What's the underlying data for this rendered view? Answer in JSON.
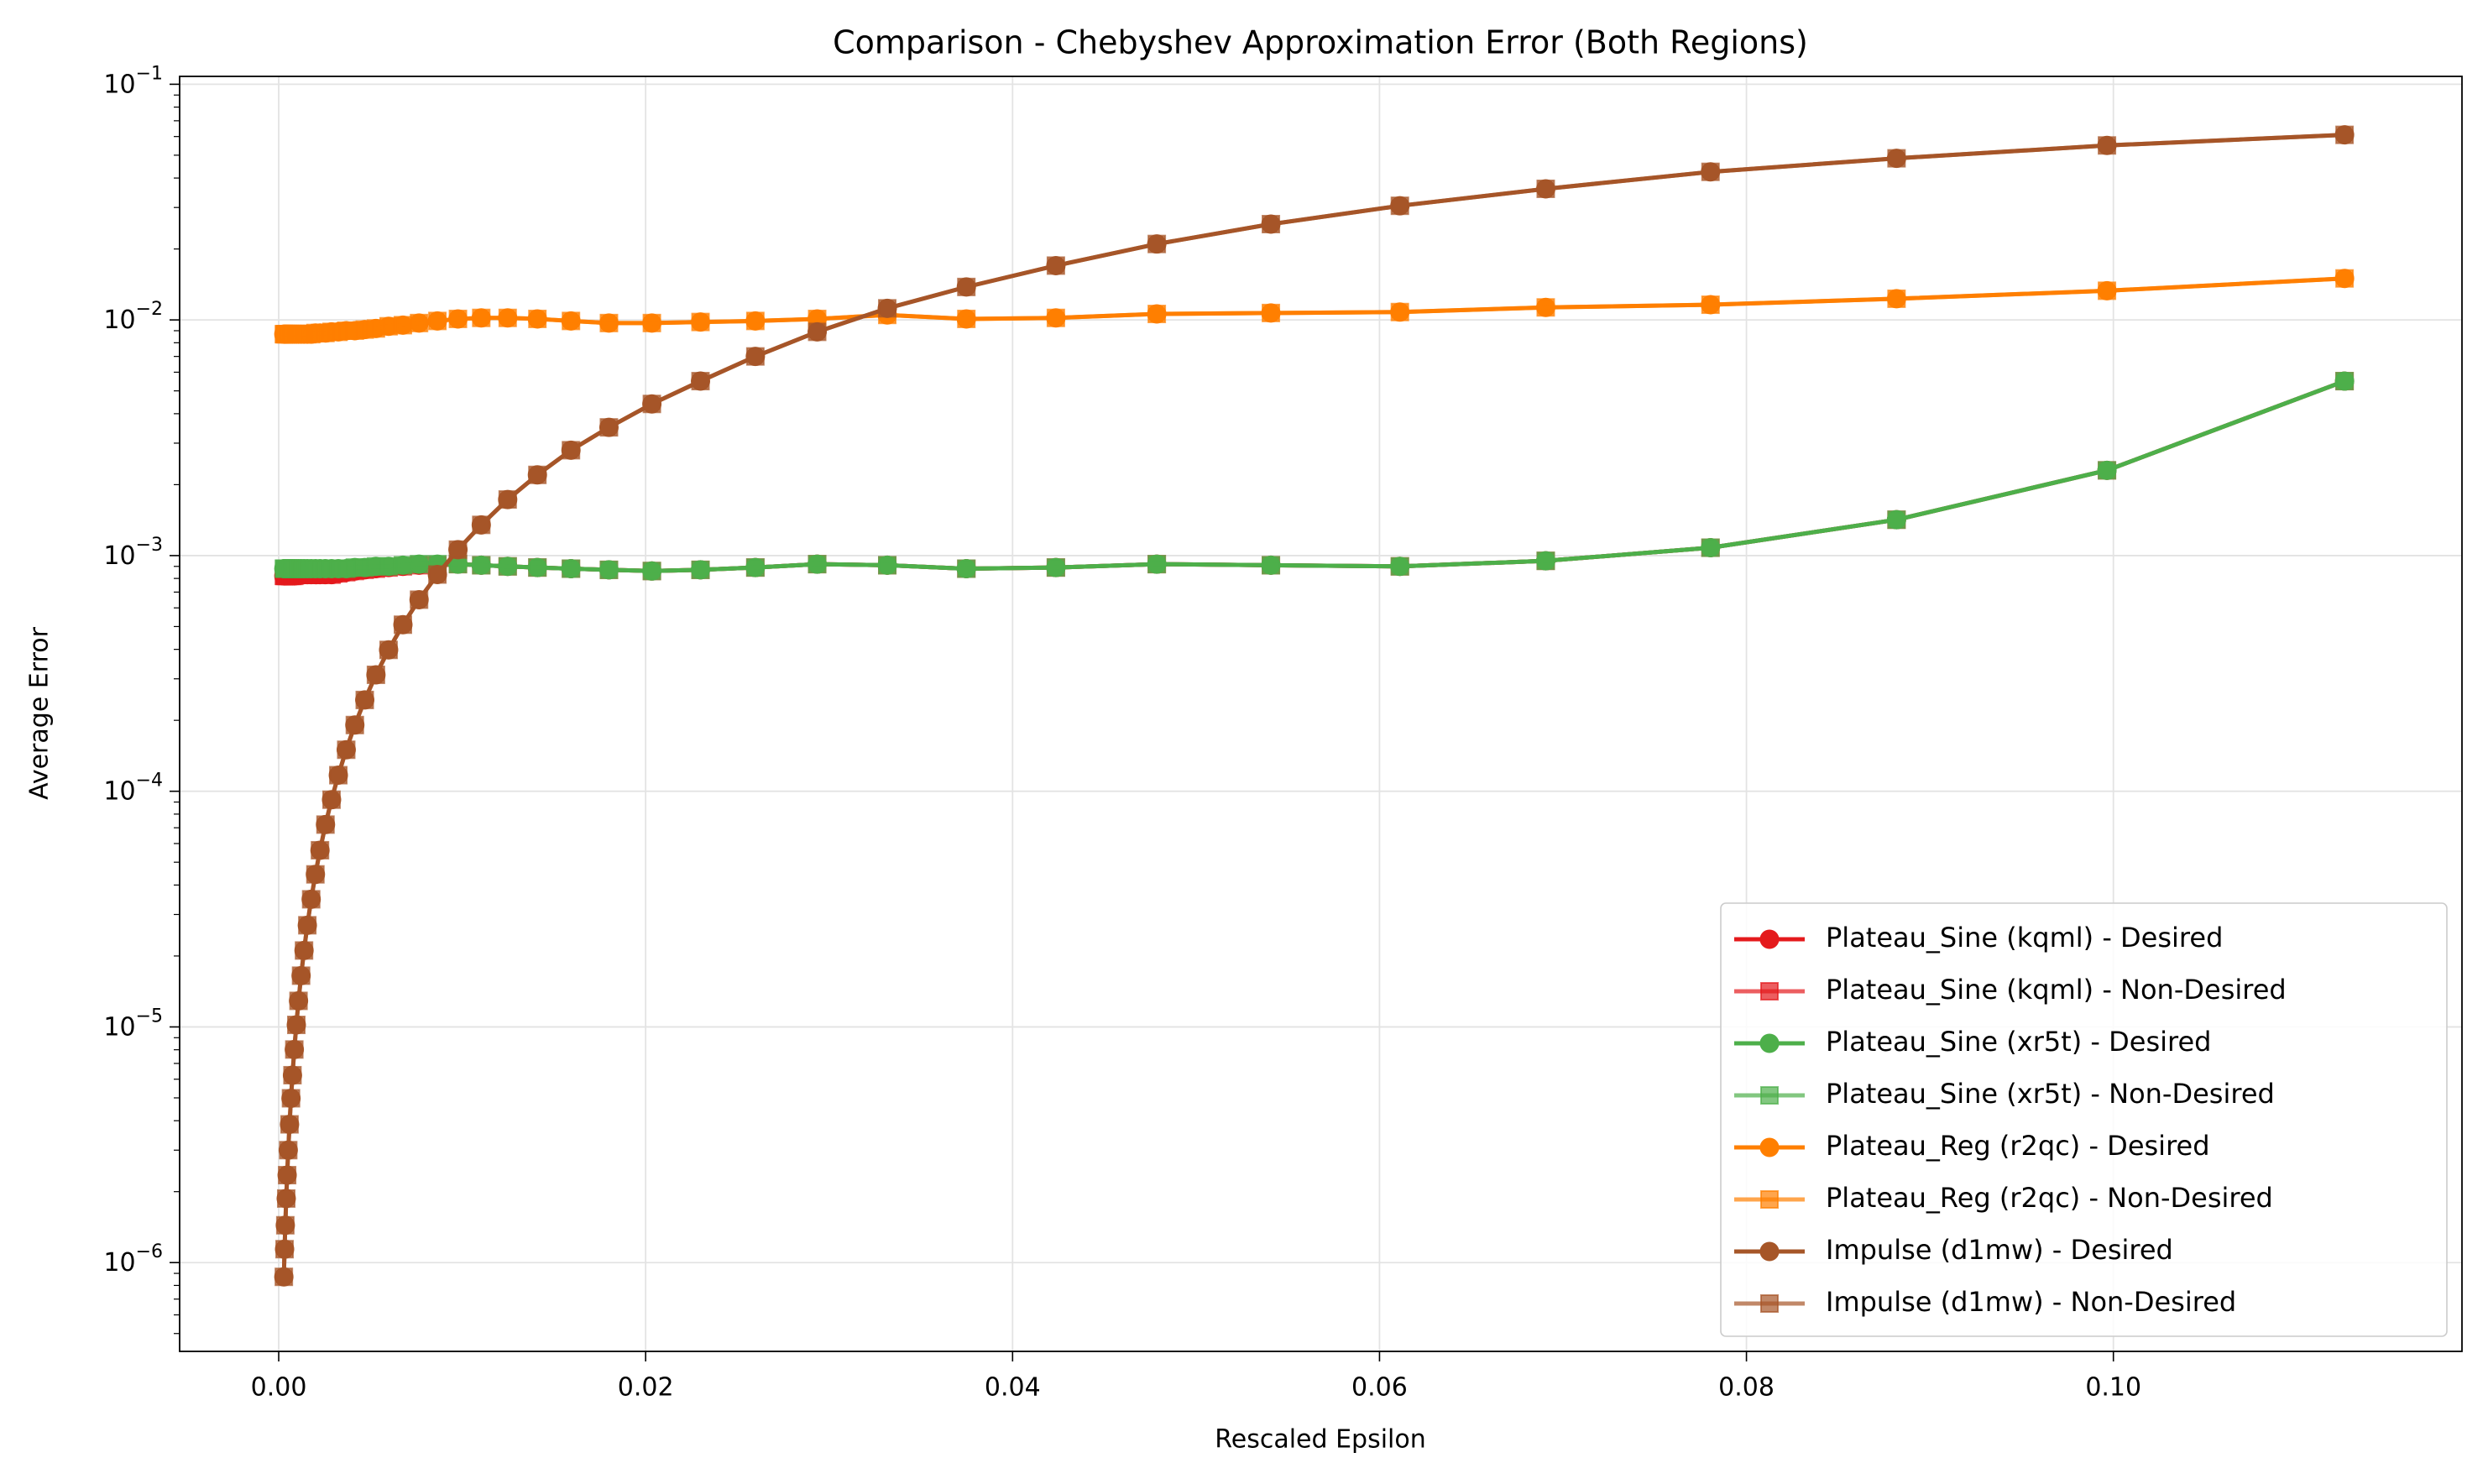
{
  "chart_data": {
    "type": "line",
    "title": "Comparison - Chebyshev Approximation Error (Both Regions)",
    "xlabel": "Rescaled Epsilon",
    "ylabel": "Average Error",
    "yscale": "log",
    "grid": true,
    "legend_loc": "lower right",
    "xlim": [
      -0.0054,
      0.119
    ],
    "ylim": [
      4.2e-07,
      0.108
    ],
    "xticks": [
      {
        "value": 0,
        "label": "0.00"
      },
      {
        "value": 0.02,
        "label": "0.02"
      },
      {
        "value": 0.04,
        "label": "0.04"
      },
      {
        "value": 0.06,
        "label": "0.06"
      },
      {
        "value": 0.08,
        "label": "0.08"
      },
      {
        "value": 0.1,
        "label": "0.10"
      }
    ],
    "yticks": [
      {
        "value": 1e-06,
        "label": "10",
        "exponent": "−6"
      },
      {
        "value": 1e-05,
        "label": "10",
        "exponent": "−5"
      },
      {
        "value": 0.0001,
        "label": "10",
        "exponent": "−4"
      },
      {
        "value": 0.001,
        "label": "10",
        "exponent": "−3"
      },
      {
        "value": 0.01,
        "label": "10",
        "exponent": "−2"
      },
      {
        "value": 0.1,
        "label": "10",
        "exponent": "−1"
      }
    ],
    "x": [
      0.00028,
      0.00032,
      0.00036,
      0.00041,
      0.00046,
      0.00052,
      0.00059,
      0.00067,
      0.00075,
      0.00085,
      0.00096,
      0.00108,
      0.00122,
      0.00138,
      0.00156,
      0.00177,
      0.002,
      0.00225,
      0.00255,
      0.00288,
      0.00325,
      0.00368,
      0.00415,
      0.00469,
      0.0053,
      0.00599,
      0.00677,
      0.00765,
      0.00865,
      0.00977,
      0.01104,
      0.01248,
      0.0141,
      0.01593,
      0.018,
      0.02034,
      0.02299,
      0.02598,
      0.02935,
      0.03317,
      0.03748,
      0.04236,
      0.04786,
      0.05408,
      0.06111,
      0.06906,
      0.07804,
      0.08818,
      0.09965,
      0.1126
    ],
    "series": [
      {
        "name": "Plateau_Sine (kqml) - Desired",
        "color": "#e41a1c",
        "marker": "circle",
        "alpha": 1,
        "values": [
          0.00082,
          0.00082,
          0.00082,
          0.00082,
          0.00082,
          0.00082,
          0.00082,
          0.00082,
          0.00082,
          0.00082,
          0.00083,
          0.00083,
          0.00083,
          0.00083,
          0.00083,
          0.00083,
          0.00083,
          0.00083,
          0.00083,
          0.00083,
          0.00084,
          0.00085,
          0.00086,
          0.00087,
          0.00088,
          0.00089,
          0.0009,
          0.00091,
          0.00091,
          0.00092,
          0.00091,
          0.0009,
          0.00089,
          0.00088,
          0.00087,
          0.00086,
          0.00087,
          0.00089,
          0.00092,
          0.00091,
          0.00088,
          0.00089,
          0.00092,
          0.00091,
          0.0009,
          0.00095,
          0.00108,
          0.00142,
          0.0023,
          0.0055
        ]
      },
      {
        "name": "Plateau_Sine (kqml) - Non-Desired",
        "color": "#e41a1c",
        "marker": "square",
        "alpha": 0.7,
        "values": [
          0.00082,
          0.00082,
          0.00082,
          0.00082,
          0.00082,
          0.00082,
          0.00082,
          0.00082,
          0.00082,
          0.00082,
          0.00083,
          0.00083,
          0.00083,
          0.00083,
          0.00083,
          0.00083,
          0.00083,
          0.00083,
          0.00083,
          0.00083,
          0.00084,
          0.00085,
          0.00086,
          0.00087,
          0.00088,
          0.00089,
          0.0009,
          0.00091,
          0.00091,
          0.00092,
          0.00091,
          0.0009,
          0.00089,
          0.00088,
          0.00087,
          0.00086,
          0.00087,
          0.00089,
          0.00092,
          0.00091,
          0.00088,
          0.00089,
          0.00092,
          0.00091,
          0.0009,
          0.00095,
          0.00108,
          0.00142,
          0.0023,
          0.0055
        ]
      },
      {
        "name": "Plateau_Sine (xr5t) - Desired",
        "color": "#4daf4a",
        "marker": "circle",
        "alpha": 1,
        "values": [
          0.00088,
          0.00088,
          0.00088,
          0.00088,
          0.00088,
          0.00088,
          0.00088,
          0.00088,
          0.00088,
          0.00088,
          0.00088,
          0.00088,
          0.00088,
          0.00088,
          0.00088,
          0.00088,
          0.00088,
          0.00088,
          0.00088,
          0.00088,
          0.00088,
          0.00088,
          0.00089,
          0.00089,
          0.0009,
          0.0009,
          0.00091,
          0.00092,
          0.00092,
          0.00092,
          0.00091,
          0.0009,
          0.00089,
          0.00088,
          0.00087,
          0.00086,
          0.00087,
          0.00089,
          0.00092,
          0.00091,
          0.00088,
          0.00089,
          0.00092,
          0.00091,
          0.0009,
          0.00095,
          0.00108,
          0.00142,
          0.0023,
          0.0055
        ]
      },
      {
        "name": "Plateau_Sine (xr5t) - Non-Desired",
        "color": "#4daf4a",
        "marker": "square",
        "alpha": 0.7,
        "values": [
          0.00088,
          0.00088,
          0.00088,
          0.00088,
          0.00088,
          0.00088,
          0.00088,
          0.00088,
          0.00088,
          0.00088,
          0.00088,
          0.00088,
          0.00088,
          0.00088,
          0.00088,
          0.00088,
          0.00088,
          0.00088,
          0.00088,
          0.00088,
          0.00088,
          0.00088,
          0.00089,
          0.00089,
          0.0009,
          0.0009,
          0.00091,
          0.00092,
          0.00092,
          0.00092,
          0.00091,
          0.0009,
          0.00089,
          0.00088,
          0.00087,
          0.00086,
          0.00087,
          0.00089,
          0.00092,
          0.00091,
          0.00088,
          0.00089,
          0.00092,
          0.00091,
          0.0009,
          0.00095,
          0.00108,
          0.00142,
          0.0023,
          0.0055
        ]
      },
      {
        "name": "Plateau_Reg (r2qc) - Desired",
        "color": "#ff7f00",
        "marker": "circle",
        "alpha": 1,
        "values": [
          0.0087,
          0.0087,
          0.0087,
          0.0087,
          0.0087,
          0.0087,
          0.0087,
          0.0087,
          0.0087,
          0.0087,
          0.0087,
          0.0087,
          0.0087,
          0.0087,
          0.0087,
          0.0087,
          0.0088,
          0.0088,
          0.0088,
          0.0089,
          0.0089,
          0.009,
          0.009,
          0.0091,
          0.0092,
          0.0094,
          0.0095,
          0.0097,
          0.0099,
          0.0101,
          0.0102,
          0.0102,
          0.0101,
          0.0099,
          0.0097,
          0.0097,
          0.0098,
          0.0099,
          0.0101,
          0.0105,
          0.0101,
          0.0102,
          0.0106,
          0.0107,
          0.0108,
          0.0113,
          0.0116,
          0.0123,
          0.0133,
          0.015
        ]
      },
      {
        "name": "Plateau_Reg (r2qc) - Non-Desired",
        "color": "#ff7f00",
        "marker": "square",
        "alpha": 0.7,
        "values": [
          0.0087,
          0.0087,
          0.0087,
          0.0087,
          0.0087,
          0.0087,
          0.0087,
          0.0087,
          0.0087,
          0.0087,
          0.0087,
          0.0087,
          0.0087,
          0.0087,
          0.0087,
          0.0087,
          0.0088,
          0.0088,
          0.0088,
          0.0089,
          0.0089,
          0.009,
          0.009,
          0.0091,
          0.0092,
          0.0094,
          0.0095,
          0.0097,
          0.0099,
          0.0101,
          0.0102,
          0.0102,
          0.0101,
          0.0099,
          0.0097,
          0.0097,
          0.0098,
          0.0099,
          0.0101,
          0.0105,
          0.0101,
          0.0102,
          0.0106,
          0.0107,
          0.0108,
          0.0113,
          0.0116,
          0.0123,
          0.0133,
          0.015
        ]
      },
      {
        "name": "Impulse (d1mw) - Desired",
        "color": "#a65628",
        "marker": "circle",
        "alpha": 1,
        "values": [
          8.7e-07,
          1.14e-06,
          1.44e-06,
          1.87e-06,
          2.35e-06,
          3e-06,
          3.86e-06,
          4.98e-06,
          6.24e-06,
          8.02e-06,
          1.02e-05,
          1.29e-05,
          1.65e-05,
          2.11e-05,
          2.7e-05,
          3.48e-05,
          4.44e-05,
          5.62e-05,
          7.22e-05,
          9.21e-05,
          0.000117,
          0.00015,
          0.000191,
          0.000244,
          0.000312,
          0.000398,
          0.000509,
          0.00065,
          0.000831,
          0.00106,
          0.00135,
          0.00173,
          0.0022,
          0.0028,
          0.0035,
          0.0044,
          0.0055,
          0.007,
          0.0089,
          0.0112,
          0.0138,
          0.017,
          0.021,
          0.0255,
          0.0305,
          0.036,
          0.0425,
          0.0485,
          0.055,
          0.061
        ]
      },
      {
        "name": "Impulse (d1mw) - Non-Desired",
        "color": "#a65628",
        "marker": "square",
        "alpha": 0.7,
        "values": [
          8.7e-07,
          1.14e-06,
          1.44e-06,
          1.87e-06,
          2.35e-06,
          3e-06,
          3.86e-06,
          4.98e-06,
          6.24e-06,
          8.02e-06,
          1.02e-05,
          1.29e-05,
          1.65e-05,
          2.11e-05,
          2.7e-05,
          3.48e-05,
          4.44e-05,
          5.62e-05,
          7.22e-05,
          9.21e-05,
          0.000117,
          0.00015,
          0.000191,
          0.000244,
          0.000312,
          0.000398,
          0.000509,
          0.00065,
          0.000831,
          0.00106,
          0.00135,
          0.00173,
          0.0022,
          0.0028,
          0.0035,
          0.0044,
          0.0055,
          0.007,
          0.0089,
          0.0112,
          0.0138,
          0.017,
          0.021,
          0.0255,
          0.0305,
          0.036,
          0.0425,
          0.0485,
          0.055,
          0.061
        ]
      }
    ]
  }
}
